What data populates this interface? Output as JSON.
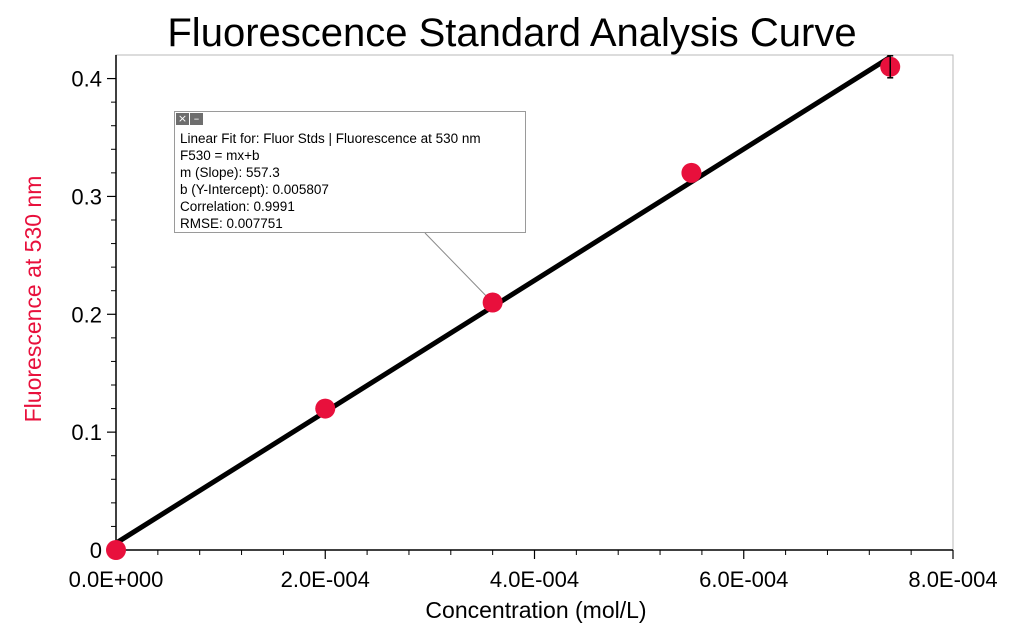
{
  "chart_data": {
    "type": "scatter",
    "title": "Fluorescence Standard Analysis Curve",
    "xlabel": "Concentration (mol/L)",
    "ylabel": "Fluorescence at 530 nm",
    "xlim": [
      0,
      0.0008
    ],
    "ylim": [
      0,
      0.42
    ],
    "x_ticks": [
      0,
      0.0002,
      0.0004,
      0.0006,
      0.0008
    ],
    "x_tick_labels": [
      "0.0E+000",
      "2.0E-004",
      "4.0E-004",
      "6.0E-004",
      "8.0E-004"
    ],
    "y_ticks": [
      0,
      0.1,
      0.2,
      0.3,
      0.4
    ],
    "y_tick_labels": [
      "0",
      "0.1",
      "0.2",
      "0.3",
      "0.4"
    ],
    "grid": false,
    "series": [
      {
        "x": [
          0,
          0.0002,
          0.00036,
          0.00055,
          0.00074
        ],
        "y": [
          0,
          0.12,
          0.21,
          0.32,
          0.41
        ],
        "color": "#e8103c"
      }
    ],
    "fit": {
      "slope": 557.3,
      "intercept": 0.005807,
      "x_range": [
        0,
        0.00074
      ],
      "color": "#000000"
    },
    "annotation_box": {
      "lines": [
        "Linear Fit for: Fluor Stds | Fluorescence at 530 nm",
        "F530 = mx+b",
        "m (Slope): 557.3",
        "b (Y-Intercept): 0.005807",
        "Correlation: 0.9991",
        "RMSE: 0.007751"
      ]
    },
    "colors": {
      "ylabel": "#e8103c",
      "points": "#e8103c",
      "fit_line": "#000000"
    }
  },
  "box_controls": {
    "close_icon": "×",
    "minimize_icon": "–"
  }
}
